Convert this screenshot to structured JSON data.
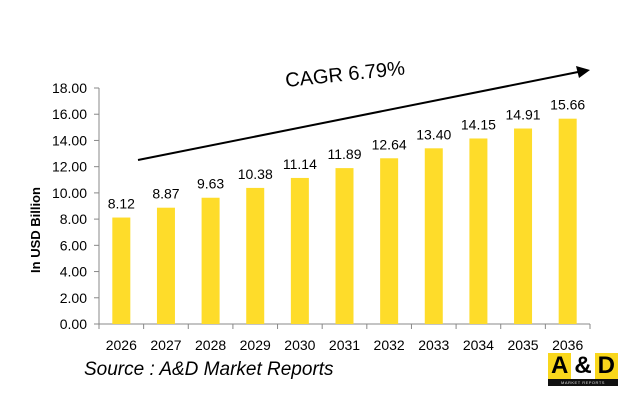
{
  "chart_data": {
    "type": "bar",
    "title": "",
    "ylabel": "In USD Billion",
    "xlabel": "",
    "categories": [
      "2026",
      "2027",
      "2028",
      "2029",
      "2030",
      "2031",
      "2032",
      "2033",
      "2034",
      "2035",
      "2036"
    ],
    "values": [
      8.12,
      8.87,
      9.63,
      10.38,
      11.14,
      11.89,
      12.64,
      13.4,
      14.15,
      14.91,
      15.66
    ],
    "data_labels": [
      "8.12",
      "8.87",
      "9.63",
      "10.38",
      "11.14",
      "11.89",
      "12.64",
      "13.40",
      "14.15",
      "14.91",
      "15.66"
    ],
    "ylim": [
      0,
      18
    ],
    "yticks": [
      "0.00",
      "2.00",
      "4.00",
      "6.00",
      "8.00",
      "10.00",
      "12.00",
      "14.00",
      "16.00",
      "18.00"
    ],
    "grid": false,
    "bar_color": "#fedc2a",
    "annotation": "CAGR 6.79%"
  },
  "source": "Source : A&D Market Reports",
  "logo": {
    "text_left": "A",
    "text_mid": "&",
    "text_right": "D",
    "tagline": "MARKET REPORTS",
    "color": "#f9d71c"
  }
}
